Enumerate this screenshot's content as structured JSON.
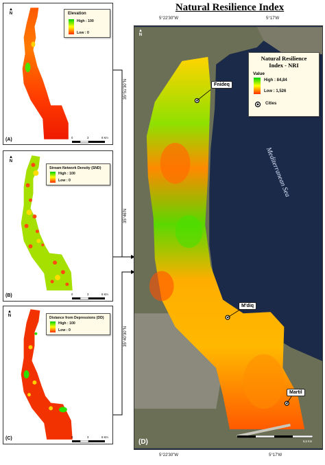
{
  "title": "Natural Resilience Index",
  "panels": {
    "a": {
      "letter": "(A)",
      "north": "N",
      "legend_title": "Elevation",
      "legend_high": "High : 100",
      "legend_low": "Low : 0",
      "scale": [
        "0",
        "3",
        "6 Km"
      ]
    },
    "b": {
      "letter": "(B)",
      "north": "N",
      "legend_title": "Stream Network Density (SND)",
      "legend_high": "High : 100",
      "legend_low": "Low : 0",
      "scale": [
        "0",
        "3",
        "6 Km"
      ]
    },
    "c": {
      "letter": "(C)",
      "north": "N",
      "legend_title": "Distance from Depressions (DD)",
      "legend_high": "High : 100",
      "legend_low": "Low : 0",
      "scale": [
        "0",
        "3",
        "6 Km"
      ]
    },
    "d": {
      "letter": "(D)",
      "north": "N",
      "legend_title_line1": "Natural Resilience",
      "legend_title_line2": "Index -  NRI",
      "legend_value": "Value",
      "legend_high": "High : 84,84",
      "legend_low": "Low : 1,526",
      "legend_cities": "Cities",
      "scale_end": "6,5 Km",
      "sea_label": "Mediterranean Sea",
      "cities": [
        "Fnideq",
        "M'diq",
        "Martil"
      ]
    }
  },
  "coordinates": {
    "top_left_lon": "5°22'30\"W",
    "top_right_lon": "5°17'W",
    "bottom_left_lon": "5°22'30\"W",
    "bottom_right_lon": "5°17'W",
    "lat_1": "35°51'30\"N",
    "lat_2": "35°46'N",
    "lat_3": "35°40'30\"N"
  },
  "colors": {
    "high": "#00d400",
    "mid": "#ffff00",
    "low": "#ff2a00",
    "sea": "#1c2a4a",
    "land": "#6a6f55"
  }
}
